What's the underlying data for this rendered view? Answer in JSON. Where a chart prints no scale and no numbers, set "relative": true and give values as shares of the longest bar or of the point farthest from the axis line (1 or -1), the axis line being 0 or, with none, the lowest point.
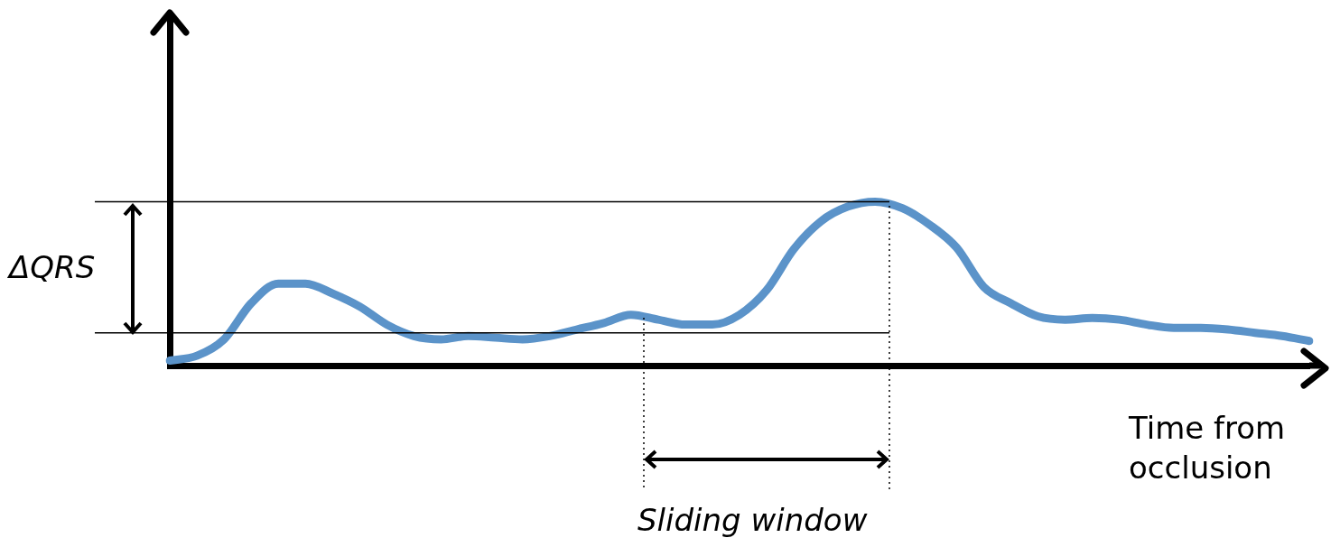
{
  "chart_data": {
    "type": "line",
    "relative": true,
    "xlabel": "Time from occlusion",
    "categories": [
      null,
      null,
      null,
      null,
      null,
      null,
      null,
      null,
      null,
      null,
      null,
      null,
      null,
      null,
      null,
      null,
      null,
      null,
      null,
      null,
      null,
      null,
      null,
      null,
      null,
      null,
      null,
      null,
      null,
      null,
      null,
      null,
      null,
      null,
      null,
      null,
      null,
      null,
      null,
      null,
      null,
      null,
      null
    ],
    "series": [
      {
        "color": "#5b93c9",
        "values": [
          0.03,
          0.06,
          0.16,
          0.38,
          0.5,
          0.5,
          0.44,
          0.36,
          0.25,
          0.18,
          0.16,
          0.18,
          0.17,
          0.16,
          0.18,
          0.22,
          0.26,
          0.31,
          0.28,
          0.25,
          0.25,
          0.31,
          0.46,
          0.71,
          0.88,
          0.97,
          1.0,
          0.96,
          0.86,
          0.72,
          0.48,
          0.38,
          0.3,
          0.28,
          0.29,
          0.28,
          0.25,
          0.23,
          0.23,
          0.22,
          0.2,
          0.18,
          0.15
        ]
      }
    ],
    "marker": "none",
    "line_style": "solid",
    "ref_lines": [
      {
        "axis": "y",
        "value": 1,
        "color": "#000000"
      },
      {
        "axis": "y",
        "value": 0.2,
        "color": "#000000"
      }
    ],
    "annotations": [
      "ΔQRS",
      "Sliding window"
    ]
  }
}
